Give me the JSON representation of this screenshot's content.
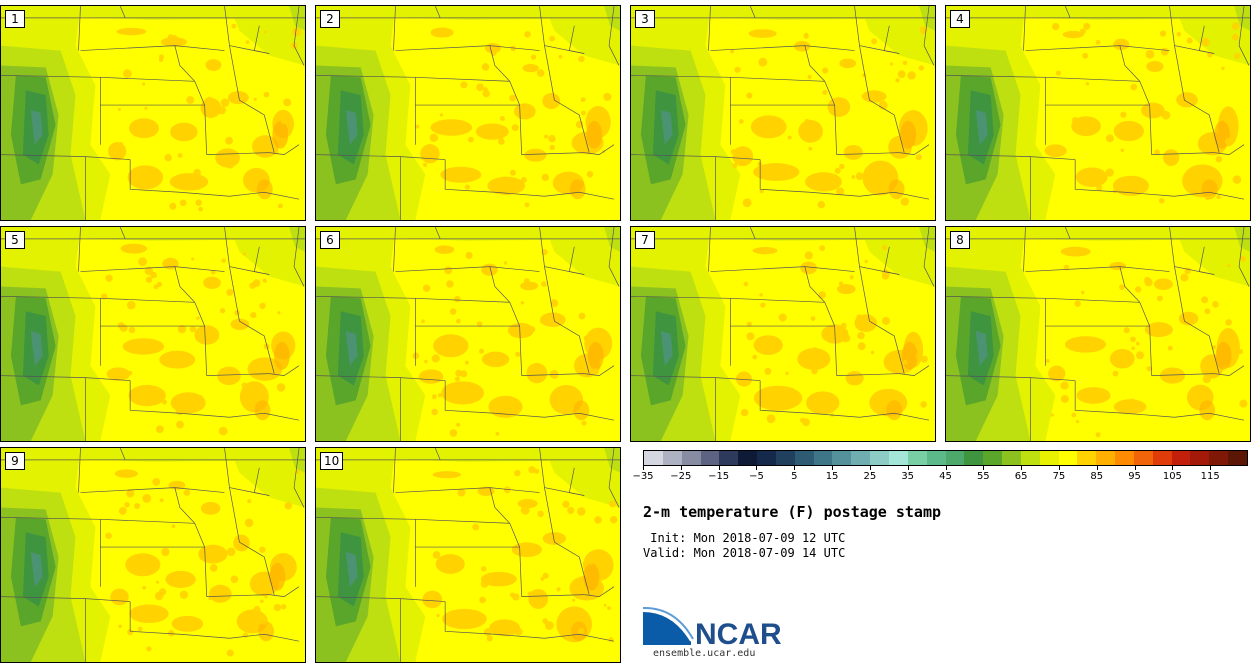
{
  "product": {
    "title": "2-m temperature (F) postage stamp",
    "init_line": " Init: Mon 2018-07-09 12 UTC",
    "valid_line": "Valid: Mon 2018-07-09 14 UTC"
  },
  "members": [
    {
      "label": "1"
    },
    {
      "label": "2"
    },
    {
      "label": "3"
    },
    {
      "label": "4"
    },
    {
      "label": "5"
    },
    {
      "label": "6"
    },
    {
      "label": "7"
    },
    {
      "label": "8"
    },
    {
      "label": "9"
    },
    {
      "label": "10"
    }
  ],
  "colorbar": {
    "tick_labels": [
      "−35",
      "−25",
      "−15",
      "−5",
      "5",
      "15",
      "25",
      "35",
      "45",
      "55",
      "65",
      "75",
      "85",
      "95",
      "105",
      "115"
    ],
    "range": [
      -35,
      125
    ],
    "bin_width": 5,
    "colors": [
      "#d4d6e0",
      "#adb1c2",
      "#878ca3",
      "#5c6482",
      "#2e3a5c",
      "#0e1a36",
      "#152a4a",
      "#21405e",
      "#2e5a73",
      "#3e7587",
      "#55919b",
      "#6fadb0",
      "#8dccc5",
      "#a3e6d8",
      "#78cfa3",
      "#5cba8a",
      "#4ca86b",
      "#3f9440",
      "#5aa62a",
      "#8cc21f",
      "#bfe010",
      "#e8f200",
      "#ffff00",
      "#ffd200",
      "#ffb000",
      "#ff8c00",
      "#f2640a",
      "#e03c0a",
      "#c2200a",
      "#a31a0a",
      "#801808",
      "#5c1606"
    ]
  },
  "map_colors": {
    "hot": "#ffd200",
    "warm": "#ffff00",
    "mild": "#e3f200",
    "cool": "#bfe010",
    "cooler": "#8cc21f",
    "mountain": "#5aa62a",
    "high_mountain": "#3f9440",
    "peak": "#55919b",
    "hottest": "#ffb000"
  },
  "branding": {
    "logo_text": "NCAR",
    "url": "ensemble.ucar.edu"
  }
}
